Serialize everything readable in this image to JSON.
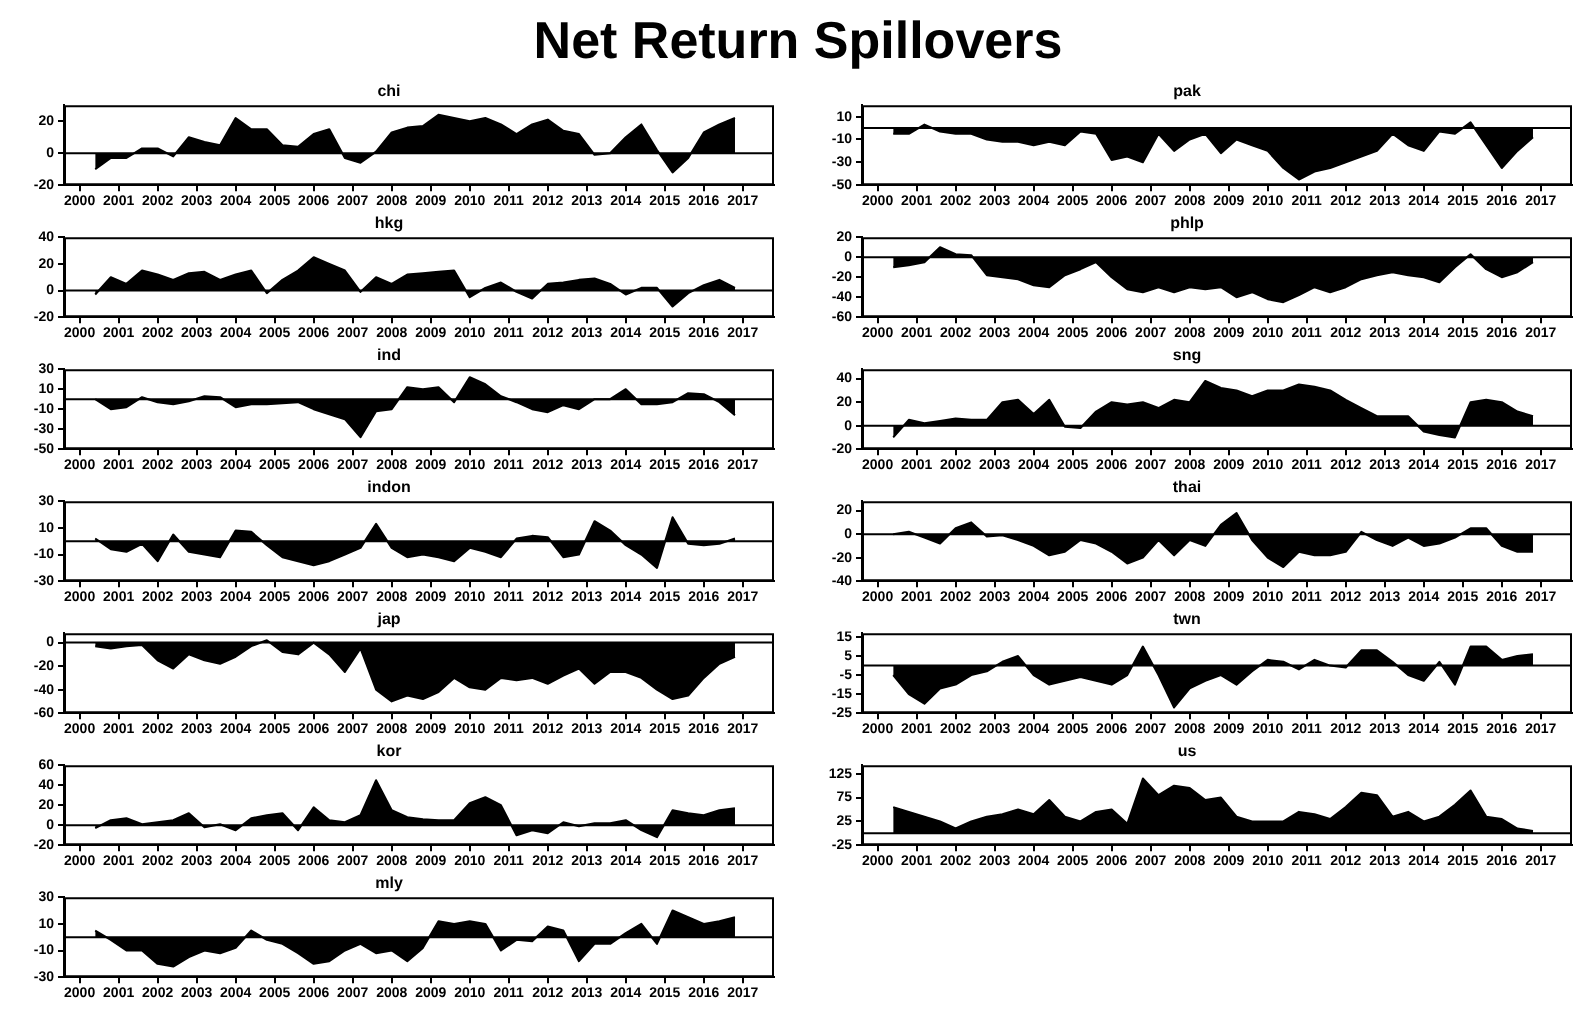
{
  "chart_data": [
    {
      "type": "other",
      "title": "Net Return Spillovers"
    },
    {
      "type": "area",
      "title": "chi",
      "color": "#000000",
      "grid": false,
      "xlim": [
        2000.1,
        2018.3
      ],
      "ylim": [
        -20,
        30
      ],
      "yticks": [
        -20,
        0,
        20
      ],
      "ref_lines": [
        {
          "axis": "y",
          "value": 0
        }
      ],
      "xticks": [
        {
          "value": 2000.5,
          "label": "2000"
        },
        {
          "value": 2001.5,
          "label": "2001"
        },
        {
          "value": 2002.5,
          "label": "2002"
        },
        {
          "value": 2003.5,
          "label": "2003"
        },
        {
          "value": 2004.5,
          "label": "2004"
        },
        {
          "value": 2005.5,
          "label": "2005"
        },
        {
          "value": 2006.5,
          "label": "2006"
        },
        {
          "value": 2007.5,
          "label": "2007"
        },
        {
          "value": 2008.5,
          "label": "2008"
        },
        {
          "value": 2009.5,
          "label": "2009"
        },
        {
          "value": 2010.5,
          "label": "2010"
        },
        {
          "value": 2011.5,
          "label": "2011"
        },
        {
          "value": 2012.5,
          "label": "2012"
        },
        {
          "value": 2013.5,
          "label": "2013"
        },
        {
          "value": 2014.5,
          "label": "2014"
        },
        {
          "value": 2015.5,
          "label": "2015"
        },
        {
          "value": 2016.5,
          "label": "2016"
        },
        {
          "value": 2017.5,
          "label": "2017"
        }
      ],
      "x": [
        2000.9,
        2001.3,
        2001.7,
        2002.1,
        2002.5,
        2002.9,
        2003.3,
        2003.7,
        2004.1,
        2004.5,
        2004.9,
        2005.3,
        2005.7,
        2006.1,
        2006.5,
        2006.9,
        2007.3,
        2007.7,
        2008.1,
        2008.5,
        2008.9,
        2009.3,
        2009.7,
        2010.1,
        2010.5,
        2010.9,
        2011.3,
        2011.7,
        2012.1,
        2012.5,
        2012.9,
        2013.3,
        2013.7,
        2014.1,
        2014.5,
        2014.9,
        2015.3,
        2015.7,
        2016.1,
        2016.5,
        2016.9,
        2017.3
      ],
      "values": [
        -10,
        -3,
        -3,
        3,
        3,
        -2,
        10,
        7,
        5,
        22,
        15,
        15,
        5,
        4,
        12,
        15,
        -3,
        -6,
        1,
        13,
        16,
        17,
        24,
        22,
        20,
        22,
        18,
        12,
        18,
        21,
        14,
        12,
        -1,
        0,
        10,
        18,
        2,
        -12,
        -3,
        13,
        18,
        22
      ]
    },
    {
      "type": "area",
      "title": "pak",
      "color": "#000000",
      "grid": false,
      "xlim": [
        2000.1,
        2018.3
      ],
      "ylim": [
        -50,
        20
      ],
      "yticks": [
        10,
        -10,
        -30,
        -50
      ],
      "ref_lines": [
        {
          "axis": "y",
          "value": 0
        }
      ],
      "xticks": [
        {
          "value": 2000.5,
          "label": "2000"
        },
        {
          "value": 2001.5,
          "label": "2001"
        },
        {
          "value": 2002.5,
          "label": "2002"
        },
        {
          "value": 2003.5,
          "label": "2003"
        },
        {
          "value": 2004.5,
          "label": "2004"
        },
        {
          "value": 2005.5,
          "label": "2005"
        },
        {
          "value": 2006.5,
          "label": "2006"
        },
        {
          "value": 2007.5,
          "label": "2007"
        },
        {
          "value": 2008.5,
          "label": "2008"
        },
        {
          "value": 2009.5,
          "label": "2009"
        },
        {
          "value": 2010.5,
          "label": "2010"
        },
        {
          "value": 2011.5,
          "label": "2011"
        },
        {
          "value": 2012.5,
          "label": "2012"
        },
        {
          "value": 2013.5,
          "label": "2013"
        },
        {
          "value": 2014.5,
          "label": "2014"
        },
        {
          "value": 2015.5,
          "label": "2015"
        },
        {
          "value": 2016.5,
          "label": "2016"
        },
        {
          "value": 2017.5,
          "label": "2017"
        }
      ],
      "x": [
        2000.9,
        2001.3,
        2001.7,
        2002.1,
        2002.5,
        2002.9,
        2003.3,
        2003.7,
        2004.1,
        2004.5,
        2004.9,
        2005.3,
        2005.7,
        2006.1,
        2006.5,
        2006.9,
        2007.3,
        2007.7,
        2008.1,
        2008.5,
        2008.9,
        2009.3,
        2009.7,
        2010.1,
        2010.5,
        2010.9,
        2011.3,
        2011.7,
        2012.1,
        2012.5,
        2012.9,
        2013.3,
        2013.7,
        2014.1,
        2014.5,
        2014.9,
        2015.3,
        2015.7,
        2016.1,
        2016.5,
        2016.9,
        2017.3
      ],
      "values": [
        -5,
        -5,
        3,
        -3,
        -5,
        -5,
        -10,
        -12,
        -12,
        -15,
        -12,
        -15,
        -3,
        -5,
        -28,
        -25,
        -30,
        -5,
        -20,
        -10,
        -5,
        -22,
        -10,
        -15,
        -20,
        -35,
        -45,
        -38,
        -35,
        -30,
        -25,
        -20,
        -5,
        -15,
        -20,
        -3,
        -5,
        5,
        -15,
        -35,
        -20,
        -8
      ]
    },
    {
      "type": "area",
      "title": "hkg",
      "color": "#000000",
      "grid": false,
      "xlim": [
        2000.1,
        2018.3
      ],
      "ylim": [
        -20,
        40
      ],
      "yticks": [
        -20,
        0,
        20,
        40
      ],
      "ref_lines": [
        {
          "axis": "y",
          "value": 0
        }
      ],
      "xticks": [
        {
          "value": 2000.5,
          "label": "2000"
        },
        {
          "value": 2001.5,
          "label": "2001"
        },
        {
          "value": 2002.5,
          "label": "2002"
        },
        {
          "value": 2003.5,
          "label": "2003"
        },
        {
          "value": 2004.5,
          "label": "2004"
        },
        {
          "value": 2005.5,
          "label": "2005"
        },
        {
          "value": 2006.5,
          "label": "2006"
        },
        {
          "value": 2007.5,
          "label": "2007"
        },
        {
          "value": 2008.5,
          "label": "2008"
        },
        {
          "value": 2009.5,
          "label": "2009"
        },
        {
          "value": 2010.5,
          "label": "2010"
        },
        {
          "value": 2011.5,
          "label": "2011"
        },
        {
          "value": 2012.5,
          "label": "2012"
        },
        {
          "value": 2013.5,
          "label": "2013"
        },
        {
          "value": 2014.5,
          "label": "2014"
        },
        {
          "value": 2015.5,
          "label": "2015"
        },
        {
          "value": 2016.5,
          "label": "2016"
        },
        {
          "value": 2017.5,
          "label": "2017"
        }
      ],
      "x": [
        2000.9,
        2001.3,
        2001.7,
        2002.1,
        2002.5,
        2002.9,
        2003.3,
        2003.7,
        2004.1,
        2004.5,
        2004.9,
        2005.3,
        2005.7,
        2006.1,
        2006.5,
        2006.9,
        2007.3,
        2007.7,
        2008.1,
        2008.5,
        2008.9,
        2009.3,
        2009.7,
        2010.1,
        2010.5,
        2010.9,
        2011.3,
        2011.7,
        2012.1,
        2012.5,
        2012.9,
        2013.3,
        2013.7,
        2014.1,
        2014.5,
        2014.9,
        2015.3,
        2015.7,
        2016.1,
        2016.5,
        2016.9,
        2017.3
      ],
      "values": [
        -3,
        10,
        5,
        15,
        12,
        8,
        13,
        14,
        8,
        12,
        15,
        -2,
        8,
        15,
        25,
        20,
        15,
        -1,
        10,
        5,
        12,
        13,
        14,
        15,
        -5,
        2,
        6,
        -1,
        -6,
        5,
        6,
        8,
        9,
        5,
        -3,
        2,
        2,
        -12,
        -2,
        4,
        8,
        2
      ]
    },
    {
      "type": "area",
      "title": "phlp",
      "color": "#000000",
      "grid": false,
      "xlim": [
        2000.1,
        2018.3
      ],
      "ylim": [
        -60,
        20
      ],
      "yticks": [
        -60,
        -40,
        -20,
        0,
        20
      ],
      "ref_lines": [
        {
          "axis": "y",
          "value": 0
        }
      ],
      "xticks": [
        {
          "value": 2000.5,
          "label": "2000"
        },
        {
          "value": 2001.5,
          "label": "2001"
        },
        {
          "value": 2002.5,
          "label": "2002"
        },
        {
          "value": 2003.5,
          "label": "2003"
        },
        {
          "value": 2004.5,
          "label": "2004"
        },
        {
          "value": 2005.5,
          "label": "2005"
        },
        {
          "value": 2006.5,
          "label": "2006"
        },
        {
          "value": 2007.5,
          "label": "2007"
        },
        {
          "value": 2008.5,
          "label": "2008"
        },
        {
          "value": 2009.5,
          "label": "2009"
        },
        {
          "value": 2010.5,
          "label": "2010"
        },
        {
          "value": 2011.5,
          "label": "2011"
        },
        {
          "value": 2012.5,
          "label": "2012"
        },
        {
          "value": 2013.5,
          "label": "2013"
        },
        {
          "value": 2014.5,
          "label": "2014"
        },
        {
          "value": 2015.5,
          "label": "2015"
        },
        {
          "value": 2016.5,
          "label": "2016"
        },
        {
          "value": 2017.5,
          "label": "2017"
        }
      ],
      "x": [
        2000.9,
        2001.3,
        2001.7,
        2002.1,
        2002.5,
        2002.9,
        2003.3,
        2003.7,
        2004.1,
        2004.5,
        2004.9,
        2005.3,
        2005.7,
        2006.1,
        2006.5,
        2006.9,
        2007.3,
        2007.7,
        2008.1,
        2008.5,
        2008.9,
        2009.3,
        2009.7,
        2010.1,
        2010.5,
        2010.9,
        2011.3,
        2011.7,
        2012.1,
        2012.5,
        2012.9,
        2013.3,
        2013.7,
        2014.1,
        2014.5,
        2014.9,
        2015.3,
        2015.7,
        2016.1,
        2016.5,
        2016.9,
        2017.3
      ],
      "values": [
        -10,
        -8,
        -5,
        10,
        3,
        2,
        -18,
        -20,
        -22,
        -28,
        -30,
        -18,
        -12,
        -5,
        -20,
        -32,
        -35,
        -30,
        -35,
        -30,
        -32,
        -30,
        -40,
        -35,
        -42,
        -45,
        -38,
        -30,
        -35,
        -30,
        -22,
        -18,
        -15,
        -18,
        -20,
        -25,
        -10,
        3,
        -12,
        -20,
        -15,
        -5
      ]
    },
    {
      "type": "area",
      "title": "ind",
      "color": "#000000",
      "grid": false,
      "xlim": [
        2000.1,
        2018.3
      ],
      "ylim": [
        -50,
        30
      ],
      "yticks": [
        -50,
        -30,
        -10,
        10,
        30
      ],
      "ref_lines": [
        {
          "axis": "y",
          "value": 0
        }
      ],
      "xticks": [
        {
          "value": 2000.5,
          "label": "2000"
        },
        {
          "value": 2001.5,
          "label": "2001"
        },
        {
          "value": 2002.5,
          "label": "2002"
        },
        {
          "value": 2003.5,
          "label": "2003"
        },
        {
          "value": 2004.5,
          "label": "2004"
        },
        {
          "value": 2005.5,
          "label": "2005"
        },
        {
          "value": 2006.5,
          "label": "2006"
        },
        {
          "value": 2007.5,
          "label": "2007"
        },
        {
          "value": 2008.5,
          "label": "2008"
        },
        {
          "value": 2009.5,
          "label": "2009"
        },
        {
          "value": 2010.5,
          "label": "2010"
        },
        {
          "value": 2011.5,
          "label": "2011"
        },
        {
          "value": 2012.5,
          "label": "2012"
        },
        {
          "value": 2013.5,
          "label": "2013"
        },
        {
          "value": 2014.5,
          "label": "2014"
        },
        {
          "value": 2015.5,
          "label": "2015"
        },
        {
          "value": 2016.5,
          "label": "2016"
        },
        {
          "value": 2017.5,
          "label": "2017"
        }
      ],
      "x": [
        2000.9,
        2001.3,
        2001.7,
        2002.1,
        2002.5,
        2002.9,
        2003.3,
        2003.7,
        2004.1,
        2004.5,
        2004.9,
        2005.3,
        2005.7,
        2006.1,
        2006.5,
        2006.9,
        2007.3,
        2007.7,
        2008.1,
        2008.5,
        2008.9,
        2009.3,
        2009.7,
        2010.1,
        2010.5,
        2010.9,
        2011.3,
        2011.7,
        2012.1,
        2012.5,
        2012.9,
        2013.3,
        2013.7,
        2014.1,
        2014.5,
        2014.9,
        2015.3,
        2015.7,
        2016.1,
        2016.5,
        2016.9,
        2017.3
      ],
      "values": [
        0,
        -10,
        -8,
        2,
        -3,
        -5,
        -2,
        3,
        2,
        -8,
        -5,
        -5,
        -4,
        -3,
        -10,
        -15,
        -20,
        -38,
        -12,
        -10,
        12,
        10,
        12,
        -3,
        22,
        15,
        3,
        -3,
        -10,
        -13,
        -6,
        -10,
        0,
        0,
        10,
        -5,
        -5,
        -3,
        6,
        5,
        -3,
        -16
      ]
    },
    {
      "type": "area",
      "title": "sng",
      "color": "#000000",
      "grid": false,
      "xlim": [
        2000.1,
        2018.3
      ],
      "ylim": [
        -20,
        48
      ],
      "yticks": [
        -20,
        0,
        20,
        40
      ],
      "ref_lines": [
        {
          "axis": "y",
          "value": 0
        }
      ],
      "xticks": [
        {
          "value": 2000.5,
          "label": "2000"
        },
        {
          "value": 2001.5,
          "label": "2001"
        },
        {
          "value": 2002.5,
          "label": "2002"
        },
        {
          "value": 2003.5,
          "label": "2003"
        },
        {
          "value": 2004.5,
          "label": "2004"
        },
        {
          "value": 2005.5,
          "label": "2005"
        },
        {
          "value": 2006.5,
          "label": "2006"
        },
        {
          "value": 2007.5,
          "label": "2007"
        },
        {
          "value": 2008.5,
          "label": "2008"
        },
        {
          "value": 2009.5,
          "label": "2009"
        },
        {
          "value": 2010.5,
          "label": "2010"
        },
        {
          "value": 2011.5,
          "label": "2011"
        },
        {
          "value": 2012.5,
          "label": "2012"
        },
        {
          "value": 2013.5,
          "label": "2013"
        },
        {
          "value": 2014.5,
          "label": "2014"
        },
        {
          "value": 2015.5,
          "label": "2015"
        },
        {
          "value": 2016.5,
          "label": "2016"
        },
        {
          "value": 2017.5,
          "label": "2017"
        }
      ],
      "x": [
        2000.9,
        2001.3,
        2001.7,
        2002.1,
        2002.5,
        2002.9,
        2003.3,
        2003.7,
        2004.1,
        2004.5,
        2004.9,
        2005.3,
        2005.7,
        2006.1,
        2006.5,
        2006.9,
        2007.3,
        2007.7,
        2008.1,
        2008.5,
        2008.9,
        2009.3,
        2009.7,
        2010.1,
        2010.5,
        2010.9,
        2011.3,
        2011.7,
        2012.1,
        2012.5,
        2012.9,
        2013.3,
        2013.7,
        2014.1,
        2014.5,
        2014.9,
        2015.3,
        2015.7,
        2016.1,
        2016.5,
        2016.9,
        2017.3
      ],
      "values": [
        -10,
        5,
        2,
        4,
        6,
        5,
        5,
        20,
        22,
        10,
        22,
        -1,
        -2,
        12,
        20,
        18,
        20,
        15,
        22,
        20,
        38,
        32,
        30,
        25,
        30,
        30,
        35,
        33,
        30,
        22,
        15,
        8,
        8,
        8,
        -5,
        -8,
        -10,
        20,
        22,
        20,
        12,
        8
      ]
    },
    {
      "type": "area",
      "title": "indon",
      "color": "#000000",
      "grid": false,
      "xlim": [
        2000.1,
        2018.3
      ],
      "ylim": [
        -30,
        30
      ],
      "yticks": [
        -30,
        -10,
        10,
        30
      ],
      "ref_lines": [
        {
          "axis": "y",
          "value": 0
        }
      ],
      "xticks": [
        {
          "value": 2000.5,
          "label": "2000"
        },
        {
          "value": 2001.5,
          "label": "2001"
        },
        {
          "value": 2002.5,
          "label": "2002"
        },
        {
          "value": 2003.5,
          "label": "2003"
        },
        {
          "value": 2004.5,
          "label": "2004"
        },
        {
          "value": 2005.5,
          "label": "2005"
        },
        {
          "value": 2006.5,
          "label": "2006"
        },
        {
          "value": 2007.5,
          "label": "2007"
        },
        {
          "value": 2008.5,
          "label": "2008"
        },
        {
          "value": 2009.5,
          "label": "2009"
        },
        {
          "value": 2010.5,
          "label": "2010"
        },
        {
          "value": 2011.5,
          "label": "2011"
        },
        {
          "value": 2012.5,
          "label": "2012"
        },
        {
          "value": 2013.5,
          "label": "2013"
        },
        {
          "value": 2014.5,
          "label": "2014"
        },
        {
          "value": 2015.5,
          "label": "2015"
        },
        {
          "value": 2016.5,
          "label": "2016"
        },
        {
          "value": 2017.5,
          "label": "2017"
        }
      ],
      "x": [
        2000.9,
        2001.3,
        2001.7,
        2002.1,
        2002.5,
        2002.9,
        2003.3,
        2003.7,
        2004.1,
        2004.5,
        2004.9,
        2005.3,
        2005.7,
        2006.1,
        2006.5,
        2006.9,
        2007.3,
        2007.7,
        2008.1,
        2008.5,
        2008.9,
        2009.3,
        2009.7,
        2010.1,
        2010.5,
        2010.9,
        2011.3,
        2011.7,
        2012.1,
        2012.5,
        2012.9,
        2013.3,
        2013.7,
        2014.1,
        2014.5,
        2014.9,
        2015.3,
        2015.7,
        2016.1,
        2016.5,
        2016.9,
        2017.3
      ],
      "values": [
        2,
        -6,
        -8,
        -2,
        -15,
        5,
        -8,
        -10,
        -12,
        8,
        7,
        -3,
        -12,
        -15,
        -18,
        -15,
        -10,
        -5,
        13,
        -5,
        -12,
        -10,
        -12,
        -15,
        -5,
        -8,
        -12,
        2,
        4,
        3,
        -12,
        -10,
        15,
        8,
        -3,
        -10,
        -20,
        18,
        -2,
        -3,
        -2,
        2
      ]
    },
    {
      "type": "area",
      "title": "thai",
      "color": "#000000",
      "grid": false,
      "xlim": [
        2000.1,
        2018.3
      ],
      "ylim": [
        -40,
        28
      ],
      "yticks": [
        -40,
        -20,
        0,
        20
      ],
      "ref_lines": [
        {
          "axis": "y",
          "value": 0
        }
      ],
      "xticks": [
        {
          "value": 2000.5,
          "label": "2000"
        },
        {
          "value": 2001.5,
          "label": "2001"
        },
        {
          "value": 2002.5,
          "label": "2002"
        },
        {
          "value": 2003.5,
          "label": "2003"
        },
        {
          "value": 2004.5,
          "label": "2004"
        },
        {
          "value": 2005.5,
          "label": "2005"
        },
        {
          "value": 2006.5,
          "label": "2006"
        },
        {
          "value": 2007.5,
          "label": "2007"
        },
        {
          "value": 2008.5,
          "label": "2008"
        },
        {
          "value": 2009.5,
          "label": "2009"
        },
        {
          "value": 2010.5,
          "label": "2010"
        },
        {
          "value": 2011.5,
          "label": "2011"
        },
        {
          "value": 2012.5,
          "label": "2012"
        },
        {
          "value": 2013.5,
          "label": "2013"
        },
        {
          "value": 2014.5,
          "label": "2014"
        },
        {
          "value": 2015.5,
          "label": "2015"
        },
        {
          "value": 2016.5,
          "label": "2016"
        },
        {
          "value": 2017.5,
          "label": "2017"
        }
      ],
      "x": [
        2000.9,
        2001.3,
        2001.7,
        2002.1,
        2002.5,
        2002.9,
        2003.3,
        2003.7,
        2004.1,
        2004.5,
        2004.9,
        2005.3,
        2005.7,
        2006.1,
        2006.5,
        2006.9,
        2007.3,
        2007.7,
        2008.1,
        2008.5,
        2008.9,
        2009.3,
        2009.7,
        2010.1,
        2010.5,
        2010.9,
        2011.3,
        2011.7,
        2012.1,
        2012.5,
        2012.9,
        2013.3,
        2013.7,
        2014.1,
        2014.5,
        2014.9,
        2015.3,
        2015.7,
        2016.1,
        2016.5,
        2016.9,
        2017.3
      ],
      "values": [
        0,
        2,
        -3,
        -8,
        5,
        10,
        -2,
        -1,
        -5,
        -10,
        -18,
        -15,
        -5,
        -8,
        -15,
        -25,
        -20,
        -5,
        -18,
        -5,
        -10,
        8,
        18,
        -5,
        -20,
        -28,
        -15,
        -18,
        -18,
        -15,
        2,
        -5,
        -10,
        -3,
        -10,
        -8,
        -3,
        5,
        5,
        -10,
        -15,
        -15
      ]
    },
    {
      "type": "area",
      "title": "jap",
      "color": "#000000",
      "grid": false,
      "xlim": [
        2000.1,
        2018.3
      ],
      "ylim": [
        -60,
        8
      ],
      "yticks": [
        -60,
        -40,
        -20,
        0
      ],
      "ref_lines": [
        {
          "axis": "y",
          "value": 0
        }
      ],
      "xticks": [
        {
          "value": 2000.5,
          "label": "2000"
        },
        {
          "value": 2001.5,
          "label": "2001"
        },
        {
          "value": 2002.5,
          "label": "2002"
        },
        {
          "value": 2003.5,
          "label": "2003"
        },
        {
          "value": 2004.5,
          "label": "2004"
        },
        {
          "value": 2005.5,
          "label": "2005"
        },
        {
          "value": 2006.5,
          "label": "2006"
        },
        {
          "value": 2007.5,
          "label": "2007"
        },
        {
          "value": 2008.5,
          "label": "2008"
        },
        {
          "value": 2009.5,
          "label": "2009"
        },
        {
          "value": 2010.5,
          "label": "2010"
        },
        {
          "value": 2011.5,
          "label": "2011"
        },
        {
          "value": 2012.5,
          "label": "2012"
        },
        {
          "value": 2013.5,
          "label": "2013"
        },
        {
          "value": 2014.5,
          "label": "2014"
        },
        {
          "value": 2015.5,
          "label": "2015"
        },
        {
          "value": 2016.5,
          "label": "2016"
        },
        {
          "value": 2017.5,
          "label": "2017"
        }
      ],
      "x": [
        2000.9,
        2001.3,
        2001.7,
        2002.1,
        2002.5,
        2002.9,
        2003.3,
        2003.7,
        2004.1,
        2004.5,
        2004.9,
        2005.3,
        2005.7,
        2006.1,
        2006.5,
        2006.9,
        2007.3,
        2007.7,
        2008.1,
        2008.5,
        2008.9,
        2009.3,
        2009.7,
        2010.1,
        2010.5,
        2010.9,
        2011.3,
        2011.7,
        2012.1,
        2012.5,
        2012.9,
        2013.3,
        2013.7,
        2014.1,
        2014.5,
        2014.9,
        2015.3,
        2015.7,
        2016.1,
        2016.5,
        2016.9,
        2017.3
      ],
      "values": [
        -3,
        -5,
        -3,
        -2,
        -15,
        -22,
        -10,
        -15,
        -18,
        -12,
        -3,
        2,
        -8,
        -10,
        0,
        -10,
        -25,
        -5,
        -40,
        -50,
        -45,
        -48,
        -42,
        -30,
        -38,
        -40,
        -30,
        -32,
        -30,
        -35,
        -28,
        -22,
        -35,
        -25,
        -25,
        -30,
        -40,
        -48,
        -45,
        -30,
        -18,
        -12
      ]
    },
    {
      "type": "area",
      "title": "twn",
      "color": "#000000",
      "grid": false,
      "xlim": [
        2000.1,
        2018.3
      ],
      "ylim": [
        -25,
        17
      ],
      "yticks": [
        -25,
        -15,
        -5,
        5,
        15
      ],
      "ref_lines": [
        {
          "axis": "y",
          "value": 0
        }
      ],
      "xticks": [
        {
          "value": 2000.5,
          "label": "2000"
        },
        {
          "value": 2001.5,
          "label": "2001"
        },
        {
          "value": 2002.5,
          "label": "2002"
        },
        {
          "value": 2003.5,
          "label": "2003"
        },
        {
          "value": 2004.5,
          "label": "2004"
        },
        {
          "value": 2005.5,
          "label": "2005"
        },
        {
          "value": 2006.5,
          "label": "2006"
        },
        {
          "value": 2007.5,
          "label": "2007"
        },
        {
          "value": 2008.5,
          "label": "2008"
        },
        {
          "value": 2009.5,
          "label": "2009"
        },
        {
          "value": 2010.5,
          "label": "2010"
        },
        {
          "value": 2011.5,
          "label": "2011"
        },
        {
          "value": 2012.5,
          "label": "2012"
        },
        {
          "value": 2013.5,
          "label": "2013"
        },
        {
          "value": 2014.5,
          "label": "2014"
        },
        {
          "value": 2015.5,
          "label": "2015"
        },
        {
          "value": 2016.5,
          "label": "2016"
        },
        {
          "value": 2017.5,
          "label": "2017"
        }
      ],
      "x": [
        2000.9,
        2001.3,
        2001.7,
        2002.1,
        2002.5,
        2002.9,
        2003.3,
        2003.7,
        2004.1,
        2004.5,
        2004.9,
        2005.3,
        2005.7,
        2006.1,
        2006.5,
        2006.9,
        2007.3,
        2007.7,
        2008.1,
        2008.5,
        2008.9,
        2009.3,
        2009.7,
        2010.1,
        2010.5,
        2010.9,
        2011.3,
        2011.7,
        2012.1,
        2012.5,
        2012.9,
        2013.3,
        2013.7,
        2014.1,
        2014.5,
        2014.9,
        2015.3,
        2015.7,
        2016.1,
        2016.5,
        2016.9,
        2017.3
      ],
      "values": [
        -5,
        -15,
        -20,
        -12,
        -10,
        -5,
        -3,
        2,
        5,
        -5,
        -10,
        -8,
        -6,
        -8,
        -10,
        -5,
        10,
        -5,
        -22,
        -12,
        -8,
        -5,
        -10,
        -3,
        3,
        2,
        -2,
        3,
        0,
        -1,
        8,
        8,
        2,
        -5,
        -8,
        2,
        -10,
        10,
        10,
        3,
        5,
        6
      ]
    },
    {
      "type": "area",
      "title": "kor",
      "color": "#000000",
      "grid": false,
      "xlim": [
        2000.1,
        2018.3
      ],
      "ylim": [
        -20,
        60
      ],
      "yticks": [
        -20,
        0,
        20,
        40,
        60
      ],
      "ref_lines": [
        {
          "axis": "y",
          "value": 0
        }
      ],
      "xticks": [
        {
          "value": 2000.5,
          "label": "2000"
        },
        {
          "value": 2001.5,
          "label": "2001"
        },
        {
          "value": 2002.5,
          "label": "2002"
        },
        {
          "value": 2003.5,
          "label": "2003"
        },
        {
          "value": 2004.5,
          "label": "2004"
        },
        {
          "value": 2005.5,
          "label": "2005"
        },
        {
          "value": 2006.5,
          "label": "2006"
        },
        {
          "value": 2007.5,
          "label": "2007"
        },
        {
          "value": 2008.5,
          "label": "2008"
        },
        {
          "value": 2009.5,
          "label": "2009"
        },
        {
          "value": 2010.5,
          "label": "2010"
        },
        {
          "value": 2011.5,
          "label": "2011"
        },
        {
          "value": 2012.5,
          "label": "2012"
        },
        {
          "value": 2013.5,
          "label": "2013"
        },
        {
          "value": 2014.5,
          "label": "2014"
        },
        {
          "value": 2015.5,
          "label": "2015"
        },
        {
          "value": 2016.5,
          "label": "2016"
        },
        {
          "value": 2017.5,
          "label": "2017"
        }
      ],
      "x": [
        2000.9,
        2001.3,
        2001.7,
        2002.1,
        2002.5,
        2002.9,
        2003.3,
        2003.7,
        2004.1,
        2004.5,
        2004.9,
        2005.3,
        2005.7,
        2006.1,
        2006.5,
        2006.9,
        2007.3,
        2007.7,
        2008.1,
        2008.5,
        2008.9,
        2009.3,
        2009.7,
        2010.1,
        2010.5,
        2010.9,
        2011.3,
        2011.7,
        2012.1,
        2012.5,
        2012.9,
        2013.3,
        2013.7,
        2014.1,
        2014.5,
        2014.9,
        2015.3,
        2015.7,
        2016.1,
        2016.5,
        2016.9,
        2017.3
      ],
      "values": [
        -3,
        5,
        7,
        1,
        3,
        5,
        12,
        -2,
        1,
        -5,
        7,
        10,
        12,
        -5,
        18,
        5,
        3,
        10,
        45,
        15,
        8,
        6,
        5,
        5,
        22,
        28,
        20,
        -10,
        -5,
        -8,
        3,
        -1,
        2,
        2,
        5,
        -5,
        -12,
        15,
        12,
        10,
        15,
        17
      ]
    },
    {
      "type": "area",
      "title": "us",
      "color": "#000000",
      "grid": false,
      "xlim": [
        2000.1,
        2018.3
      ],
      "ylim": [
        -25,
        143
      ],
      "yticks": [
        -25,
        25,
        75,
        125
      ],
      "ref_lines": [
        {
          "axis": "y",
          "value": 0
        }
      ],
      "xticks": [
        {
          "value": 2000.5,
          "label": "2000"
        },
        {
          "value": 2001.5,
          "label": "2001"
        },
        {
          "value": 2002.5,
          "label": "2002"
        },
        {
          "value": 2003.5,
          "label": "2003"
        },
        {
          "value": 2004.5,
          "label": "2004"
        },
        {
          "value": 2005.5,
          "label": "2005"
        },
        {
          "value": 2006.5,
          "label": "2006"
        },
        {
          "value": 2007.5,
          "label": "2007"
        },
        {
          "value": 2008.5,
          "label": "2008"
        },
        {
          "value": 2009.5,
          "label": "2009"
        },
        {
          "value": 2010.5,
          "label": "2010"
        },
        {
          "value": 2011.5,
          "label": "2011"
        },
        {
          "value": 2012.5,
          "label": "2012"
        },
        {
          "value": 2013.5,
          "label": "2013"
        },
        {
          "value": 2014.5,
          "label": "2014"
        },
        {
          "value": 2015.5,
          "label": "2015"
        },
        {
          "value": 2016.5,
          "label": "2016"
        },
        {
          "value": 2017.5,
          "label": "2017"
        }
      ],
      "x": [
        2000.9,
        2001.3,
        2001.7,
        2002.1,
        2002.5,
        2002.9,
        2003.3,
        2003.7,
        2004.1,
        2004.5,
        2004.9,
        2005.3,
        2005.7,
        2006.1,
        2006.5,
        2006.9,
        2007.3,
        2007.7,
        2008.1,
        2008.5,
        2008.9,
        2009.3,
        2009.7,
        2010.1,
        2010.5,
        2010.9,
        2011.3,
        2011.7,
        2012.1,
        2012.5,
        2012.9,
        2013.3,
        2013.7,
        2014.1,
        2014.5,
        2014.9,
        2015.3,
        2015.7,
        2016.1,
        2016.5,
        2016.9,
        2017.3
      ],
      "values": [
        55,
        45,
        35,
        25,
        10,
        25,
        35,
        40,
        50,
        40,
        70,
        35,
        25,
        45,
        50,
        20,
        115,
        80,
        100,
        95,
        70,
        75,
        35,
        25,
        25,
        25,
        45,
        40,
        30,
        55,
        85,
        80,
        35,
        45,
        25,
        35,
        60,
        90,
        35,
        30,
        10,
        5
      ]
    },
    {
      "type": "area",
      "title": "mly",
      "color": "#000000",
      "grid": false,
      "xlim": [
        2000.1,
        2018.3
      ],
      "ylim": [
        -30,
        30
      ],
      "yticks": [
        -30,
        -10,
        10,
        30
      ],
      "ref_lines": [
        {
          "axis": "y",
          "value": 0
        }
      ],
      "xticks": [
        {
          "value": 2000.5,
          "label": "2000"
        },
        {
          "value": 2001.5,
          "label": "2001"
        },
        {
          "value": 2002.5,
          "label": "2002"
        },
        {
          "value": 2003.5,
          "label": "2003"
        },
        {
          "value": 2004.5,
          "label": "2004"
        },
        {
          "value": 2005.5,
          "label": "2005"
        },
        {
          "value": 2006.5,
          "label": "2006"
        },
        {
          "value": 2007.5,
          "label": "2007"
        },
        {
          "value": 2008.5,
          "label": "2008"
        },
        {
          "value": 2009.5,
          "label": "2009"
        },
        {
          "value": 2010.5,
          "label": "2010"
        },
        {
          "value": 2011.5,
          "label": "2011"
        },
        {
          "value": 2012.5,
          "label": "2012"
        },
        {
          "value": 2013.5,
          "label": "2013"
        },
        {
          "value": 2014.5,
          "label": "2014"
        },
        {
          "value": 2015.5,
          "label": "2015"
        },
        {
          "value": 2016.5,
          "label": "2016"
        },
        {
          "value": 2017.5,
          "label": "2017"
        }
      ],
      "x": [
        2000.9,
        2001.3,
        2001.7,
        2002.1,
        2002.5,
        2002.9,
        2003.3,
        2003.7,
        2004.1,
        2004.5,
        2004.9,
        2005.3,
        2005.7,
        2006.1,
        2006.5,
        2006.9,
        2007.3,
        2007.7,
        2008.1,
        2008.5,
        2008.9,
        2009.3,
        2009.7,
        2010.1,
        2010.5,
        2010.9,
        2011.3,
        2011.7,
        2012.1,
        2012.5,
        2012.9,
        2013.3,
        2013.7,
        2014.1,
        2014.5,
        2014.9,
        2015.3,
        2015.7,
        2016.1,
        2016.5,
        2016.9,
        2017.3
      ],
      "values": [
        5,
        -2,
        -10,
        -10,
        -20,
        -22,
        -15,
        -10,
        -12,
        -8,
        5,
        -2,
        -5,
        -12,
        -20,
        -18,
        -10,
        -5,
        -12,
        -10,
        -18,
        -8,
        12,
        10,
        12,
        10,
        -10,
        -2,
        -3,
        8,
        5,
        -18,
        -5,
        -5,
        3,
        10,
        -5,
        20,
        15,
        10,
        12,
        15
      ]
    }
  ]
}
